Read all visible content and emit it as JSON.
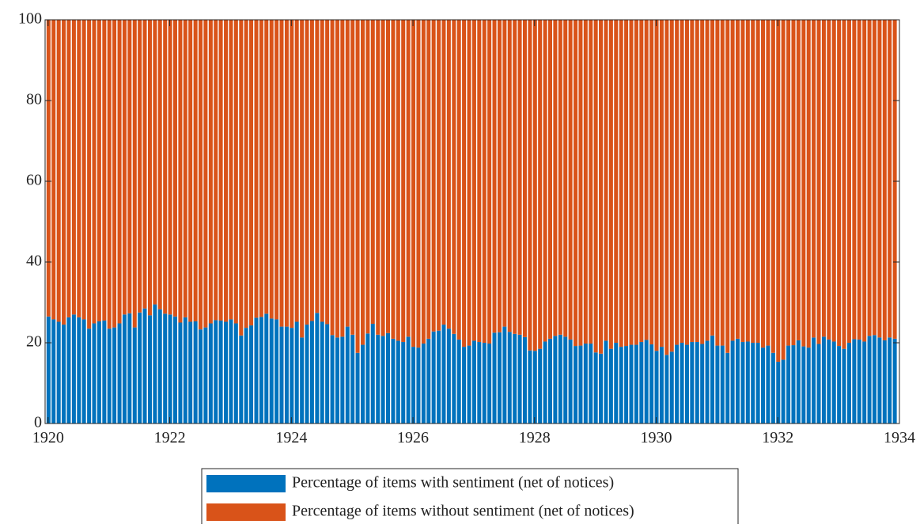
{
  "chart_data": {
    "type": "stacked_bar",
    "x": [
      1920,
      1920.083,
      1920.167,
      1920.25,
      1920.333,
      1920.417,
      1920.5,
      1920.583,
      1920.667,
      1920.75,
      1920.833,
      1920.917,
      1921,
      1921.083,
      1921.167,
      1921.25,
      1921.333,
      1921.417,
      1921.5,
      1921.583,
      1921.667,
      1921.75,
      1921.833,
      1921.917,
      1922,
      1922.083,
      1922.167,
      1922.25,
      1922.333,
      1922.417,
      1922.5,
      1922.583,
      1922.667,
      1922.75,
      1922.833,
      1922.917,
      1923,
      1923.083,
      1923.167,
      1923.25,
      1923.333,
      1923.417,
      1923.5,
      1923.583,
      1923.667,
      1923.75,
      1923.833,
      1923.917,
      1924,
      1924.083,
      1924.167,
      1924.25,
      1924.333,
      1924.417,
      1924.5,
      1924.583,
      1924.667,
      1924.75,
      1924.833,
      1924.917,
      1925,
      1925.083,
      1925.167,
      1925.25,
      1925.333,
      1925.417,
      1925.5,
      1925.583,
      1925.667,
      1925.75,
      1925.833,
      1925.917,
      1926,
      1926.083,
      1926.167,
      1926.25,
      1926.333,
      1926.417,
      1926.5,
      1926.583,
      1926.667,
      1926.75,
      1926.833,
      1926.917,
      1927,
      1927.083,
      1927.167,
      1927.25,
      1927.333,
      1927.417,
      1927.5,
      1927.583,
      1927.667,
      1927.75,
      1927.833,
      1927.917,
      1928,
      1928.083,
      1928.167,
      1928.25,
      1928.333,
      1928.417,
      1928.5,
      1928.583,
      1928.667,
      1928.75,
      1928.833,
      1928.917,
      1929,
      1929.083,
      1929.167,
      1929.25,
      1929.333,
      1929.417,
      1929.5,
      1929.583,
      1929.667,
      1929.75,
      1929.833,
      1929.917,
      1930,
      1930.083,
      1930.167,
      1930.25,
      1930.333,
      1930.417,
      1930.5,
      1930.583,
      1930.667,
      1930.75,
      1930.833,
      1930.917,
      1931,
      1931.083,
      1931.167,
      1931.25,
      1931.333,
      1931.417,
      1931.5,
      1931.583,
      1931.667,
      1931.75,
      1931.833,
      1931.917,
      1932,
      1932.083,
      1932.167,
      1932.25,
      1932.333,
      1932.417,
      1932.5,
      1932.583,
      1932.667,
      1932.75,
      1932.833,
      1932.917,
      1933,
      1933.083,
      1933.167,
      1933.25,
      1933.333,
      1933.417,
      1933.5,
      1933.583,
      1933.667,
      1933.75,
      1933.833,
      1933.917
    ],
    "series": [
      {
        "name": "Percentage of items with sentiment (net of notices)",
        "color": "#0072bd",
        "values": [
          26.5,
          25.8,
          25.2,
          24.5,
          26.3,
          27,
          26.3,
          25.8,
          23.5,
          24.8,
          25.3,
          25.5,
          23.5,
          23.8,
          24.8,
          27,
          27.3,
          23.8,
          27.5,
          28.5,
          26.8,
          29.5,
          28.3,
          27.2,
          27,
          26.5,
          25,
          26.3,
          25.2,
          25.3,
          23.3,
          23.8,
          24.8,
          25.6,
          25.5,
          25.2,
          25.8,
          24.8,
          21.8,
          23.7,
          24.3,
          26.2,
          26.4,
          27.2,
          26,
          25.8,
          24,
          24,
          23.7,
          25.2,
          21.3,
          24.5,
          25.4,
          27.4,
          25.2,
          24.6,
          21.9,
          21.3,
          21.5,
          24,
          22,
          17.5,
          19.5,
          22.3,
          24.7,
          22,
          21.7,
          22.4,
          21,
          20.5,
          20.2,
          21.5,
          19,
          18.8,
          19.8,
          21,
          22.8,
          23,
          24.5,
          23.5,
          22.2,
          20.8,
          19,
          19.3,
          20.5,
          20.2,
          20,
          19.8,
          22.5,
          22.6,
          24,
          22.7,
          22.2,
          22,
          21.4,
          18.1,
          18,
          18.5,
          20.3,
          21,
          21.7,
          22,
          21.5,
          20.8,
          19.2,
          19.3,
          19.8,
          19.8,
          17.6,
          17.3,
          20.5,
          18.5,
          20,
          19,
          19.2,
          19.5,
          19.5,
          20.2,
          20.7,
          19.6,
          18,
          19,
          17,
          17.8,
          19.5,
          20,
          19.5,
          20.2,
          20.2,
          19.7,
          20.5,
          21.8,
          19.3,
          19.3,
          17.5,
          20.5,
          21,
          20.2,
          20.3,
          20,
          20,
          18.8,
          19.3,
          17.5,
          15.3,
          15.8,
          19.3,
          19.4,
          20.6,
          19.1,
          18.8,
          21.3,
          19.7,
          21.5,
          20.8,
          20.3,
          19.2,
          18.5,
          20,
          20.9,
          20.8,
          20.3,
          21.7,
          21.9,
          21.3,
          20.6,
          21.3,
          21
        ]
      },
      {
        "name": "Percentage of items without sentiment (net of notices)",
        "color": "#d95319",
        "values": [
          73.5,
          74.2,
          74.8,
          75.5,
          73.7,
          73,
          73.7,
          74.2,
          76.5,
          75.2,
          74.7,
          74.5,
          76.5,
          76.2,
          75.2,
          73,
          72.7,
          76.2,
          72.5,
          71.5,
          73.2,
          70.5,
          71.7,
          72.8,
          73,
          73.5,
          75,
          73.7,
          74.8,
          74.7,
          76.7,
          76.2,
          75.2,
          74.4,
          74.5,
          74.8,
          74.2,
          75.2,
          78.2,
          76.3,
          75.7,
          73.8,
          73.6,
          72.8,
          74,
          74.2,
          76,
          76,
          76.3,
          74.8,
          78.7,
          75.5,
          74.6,
          72.6,
          74.8,
          75.4,
          78.1,
          78.7,
          78.5,
          76,
          78,
          82.5,
          80.5,
          77.7,
          75.3,
          78,
          78.3,
          77.6,
          79,
          79.5,
          79.8,
          78.5,
          81,
          81.2,
          80.2,
          79,
          77.2,
          77,
          75.5,
          76.5,
          77.8,
          79.2,
          81,
          80.7,
          79.5,
          79.8,
          80,
          80.2,
          77.5,
          77.4,
          76,
          77.3,
          77.8,
          78,
          78.6,
          81.9,
          82,
          81.5,
          79.7,
          79,
          78.3,
          78,
          78.5,
          79.2,
          80.8,
          80.7,
          80.2,
          80.2,
          82.4,
          82.7,
          79.5,
          81.5,
          80,
          81,
          80.8,
          80.5,
          80.5,
          79.8,
          79.3,
          80.4,
          82,
          81,
          83,
          82.2,
          80.5,
          80,
          80.5,
          79.8,
          79.8,
          80.3,
          79.5,
          78.2,
          80.7,
          80.7,
          82.5,
          79.5,
          79,
          79.8,
          79.7,
          80,
          80,
          81.2,
          80.7,
          82.5,
          84.7,
          84.2,
          80.7,
          80.6,
          79.4,
          80.9,
          81.2,
          78.7,
          80.3,
          78.5,
          79.2,
          79.7,
          80.8,
          81.5,
          80,
          79.1,
          79.2,
          79.7,
          78.3,
          78.1,
          78.7,
          79.4,
          78.7,
          79
        ]
      }
    ],
    "xlim": [
      1919.95,
      1934
    ],
    "xticks": [
      1920,
      1922,
      1924,
      1926,
      1928,
      1930,
      1932,
      1934
    ],
    "ylim": [
      0,
      100
    ],
    "yticks": [
      0,
      20,
      40,
      60,
      80,
      100
    ],
    "legend": "bottom"
  }
}
